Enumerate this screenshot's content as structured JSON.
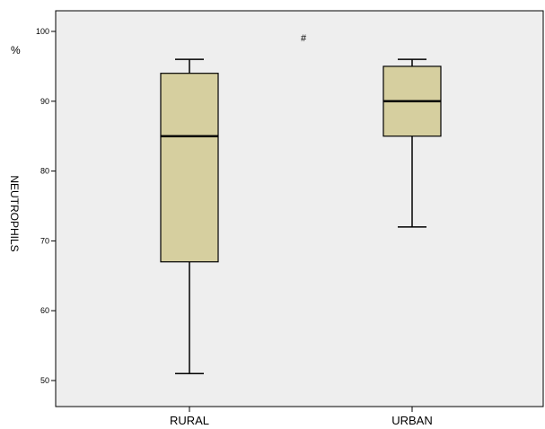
{
  "chart_data": {
    "type": "boxplot",
    "ylabel": "NEUTROPHILS",
    "unit_label": "%",
    "annotation": "#",
    "categories": [
      "RURAL",
      "URBAN"
    ],
    "ylim": [
      48.8,
      107
    ],
    "yticks": [
      50,
      60,
      70,
      80,
      90,
      100
    ],
    "boxes": [
      {
        "category": "RURAL",
        "min": 51,
        "q1": 67,
        "median": 85,
        "q3": 94,
        "max": 96
      },
      {
        "category": "URBAN",
        "min": 72,
        "q1": 85,
        "median": 90,
        "q3": 95,
        "max": 96
      }
    ],
    "colors": {
      "plot_background": "#eeeeee",
      "box_fill": "#d6cf9f",
      "box_stroke": "#000000",
      "median": "#000000"
    },
    "grid": false
  }
}
